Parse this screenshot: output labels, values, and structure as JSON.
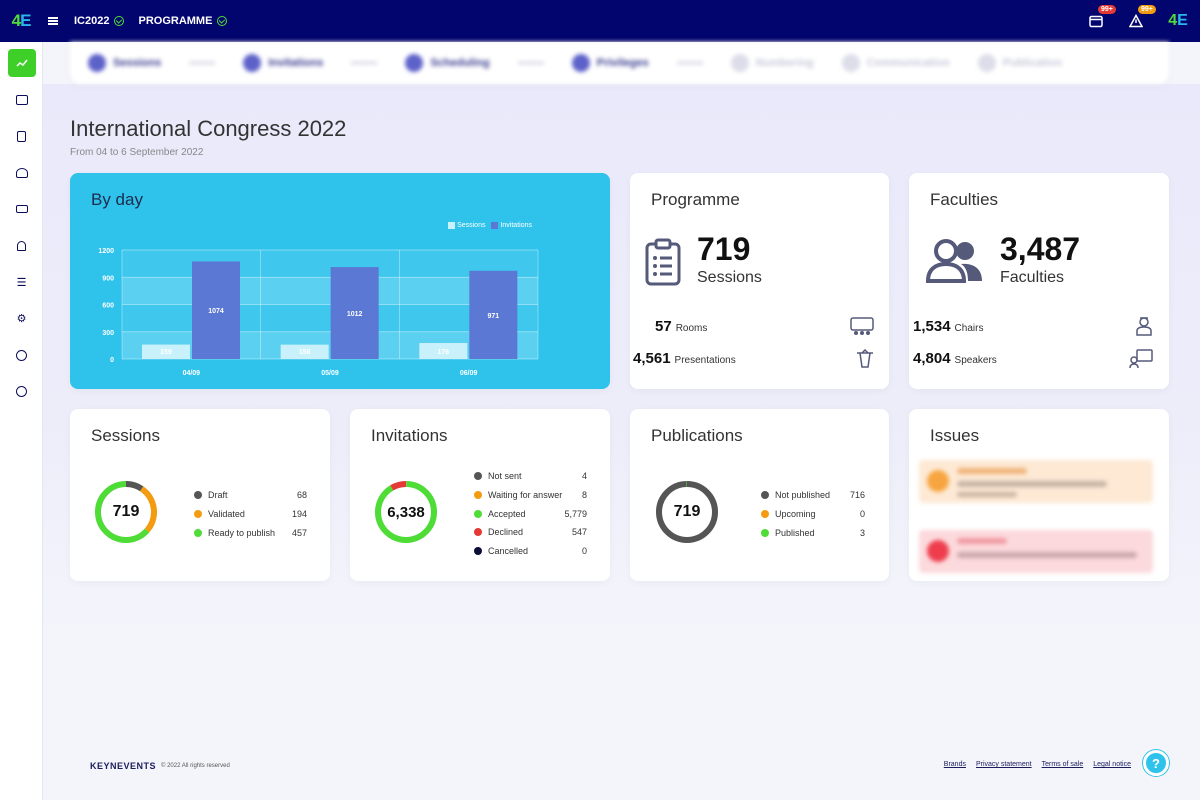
{
  "topbar": {
    "event_code": "IC2022",
    "module": "PROGRAMME",
    "notif_badge_1": "99+",
    "notif_badge_2": "99+"
  },
  "steps": [
    {
      "label": "Sessions",
      "state": "active"
    },
    {
      "label": "Invitations",
      "state": "active"
    },
    {
      "label": "Scheduling",
      "state": "active"
    },
    {
      "label": "Privileges",
      "state": "active"
    },
    {
      "label": "Numbering",
      "state": "dim"
    },
    {
      "label": "Communication",
      "state": "dim"
    },
    {
      "label": "Publication",
      "state": "dim"
    }
  ],
  "page": {
    "title": "International Congress 2022",
    "subtitle": "From 04 to 6 September 2022"
  },
  "chart_data": {
    "type": "bar",
    "title": "By day",
    "categories": [
      "04/09",
      "05/09",
      "06/09"
    ],
    "series": [
      {
        "name": "Sessions",
        "values": [
          159,
          158,
          176
        ],
        "color": "#c9f1fc"
      },
      {
        "name": "Invitations",
        "values": [
          1074,
          1012,
          971
        ],
        "color": "#5a78d4"
      }
    ],
    "yticks": [
      "0",
      "300",
      "600",
      "900",
      "1200"
    ],
    "ylim": [
      0,
      1200
    ],
    "legend": "top-right"
  },
  "programme": {
    "title": "Programme",
    "sessions_count": "719",
    "sessions_label": "Sessions",
    "rooms_count": "57",
    "rooms_label": "Rooms",
    "presentations_count": "4,561",
    "presentations_label": "Presentations"
  },
  "faculties": {
    "title": "Faculties",
    "count": "3,487",
    "label": "Faculties",
    "chairs_count": "1,534",
    "chairs_label": "Chairs",
    "speakers_count": "4,804",
    "speakers_label": "Speakers"
  },
  "sessions_card": {
    "title": "Sessions",
    "total": "719",
    "items": [
      {
        "label": "Draft",
        "value": "68",
        "color": "#555555"
      },
      {
        "label": "Validated",
        "value": "194",
        "color": "#f39c12"
      },
      {
        "label": "Ready to publish",
        "value": "457",
        "color": "#4fdc37"
      }
    ]
  },
  "invitations_card": {
    "title": "Invitations",
    "total": "6,338",
    "items": [
      {
        "label": "Not sent",
        "value": "4",
        "color": "#555555"
      },
      {
        "label": "Waiting for answer",
        "value": "8",
        "color": "#f39c12"
      },
      {
        "label": "Accepted",
        "value": "5,779",
        "color": "#4fdc37"
      },
      {
        "label": "Declined",
        "value": "547",
        "color": "#e53935"
      },
      {
        "label": "Cancelled",
        "value": "0",
        "color": "#0b0d3a"
      }
    ]
  },
  "publications_card": {
    "title": "Publications",
    "total": "719",
    "items": [
      {
        "label": "Not published",
        "value": "716",
        "color": "#555555"
      },
      {
        "label": "Upcoming",
        "value": "0",
        "color": "#f39c12"
      },
      {
        "label": "Published",
        "value": "3",
        "color": "#4fdc37"
      }
    ]
  },
  "issues_card": {
    "title": "Issues"
  },
  "footer": {
    "logo": "KEYNEVENTS",
    "copyright": "© 2022 All rights reserved",
    "links": [
      "Brands",
      "Privacy statement",
      "Terms of sale",
      "Legal notice"
    ]
  },
  "help_label": "?"
}
